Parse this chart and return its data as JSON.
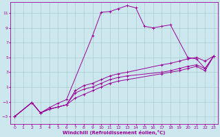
{
  "xlabel": "Windchill (Refroidissement éolien,°C)",
  "bg_color": "#cce8ee",
  "grid_color": "#aacccc",
  "line_color": "#990099",
  "xlim": [
    -0.5,
    23.5
  ],
  "ylim": [
    -4.0,
    12.5
  ],
  "yticks": [
    -3,
    -1,
    1,
    3,
    5,
    7,
    9,
    11
  ],
  "xticks": [
    0,
    1,
    2,
    3,
    4,
    5,
    6,
    7,
    8,
    9,
    10,
    11,
    12,
    13,
    14,
    15,
    16,
    17,
    18,
    19,
    20,
    21,
    22,
    23
  ],
  "lines": [
    {
      "x": [
        0,
        2,
        3,
        4,
        5,
        6,
        9,
        10,
        11,
        12,
        13,
        14,
        15,
        16,
        17,
        18,
        20,
        21,
        22,
        23
      ],
      "y": [
        -3,
        -1.1,
        -2.5,
        -1.8,
        -1.2,
        -0.7,
        7.9,
        11.1,
        11.2,
        11.6,
        12.0,
        11.7,
        9.2,
        9.0,
        9.2,
        9.4,
        5.0,
        4.8,
        3.5,
        5.2
      ]
    },
    {
      "x": [
        0,
        2,
        3,
        4,
        5,
        6,
        7,
        8,
        9,
        10,
        11,
        12,
        13,
        17,
        18,
        19,
        20,
        21,
        22,
        23
      ],
      "y": [
        -3,
        -1.1,
        -2.5,
        -2.0,
        -1.7,
        -1.4,
        0.5,
        1.2,
        1.5,
        2.0,
        2.5,
        2.8,
        3.0,
        4.0,
        4.2,
        4.5,
        4.8,
        5.0,
        4.5,
        5.2
      ]
    },
    {
      "x": [
        0,
        2,
        3,
        4,
        5,
        6,
        7,
        8,
        9,
        10,
        11,
        12,
        13,
        17,
        18,
        19,
        20,
        21,
        22,
        23
      ],
      "y": [
        -3,
        -1.1,
        -2.5,
        -2.0,
        -1.7,
        -1.4,
        0.2,
        0.7,
        1.0,
        1.5,
        2.0,
        2.3,
        2.5,
        3.0,
        3.2,
        3.5,
        3.8,
        4.0,
        3.5,
        5.2
      ]
    },
    {
      "x": [
        0,
        2,
        3,
        4,
        5,
        6,
        7,
        8,
        9,
        10,
        11,
        12,
        13,
        17,
        18,
        19,
        20,
        21,
        22,
        23
      ],
      "y": [
        -3,
        -1.1,
        -2.5,
        -2.0,
        -1.7,
        -1.4,
        -0.5,
        0.0,
        0.5,
        1.0,
        1.5,
        1.8,
        2.0,
        2.8,
        3.0,
        3.2,
        3.5,
        3.8,
        3.2,
        5.2
      ]
    }
  ]
}
